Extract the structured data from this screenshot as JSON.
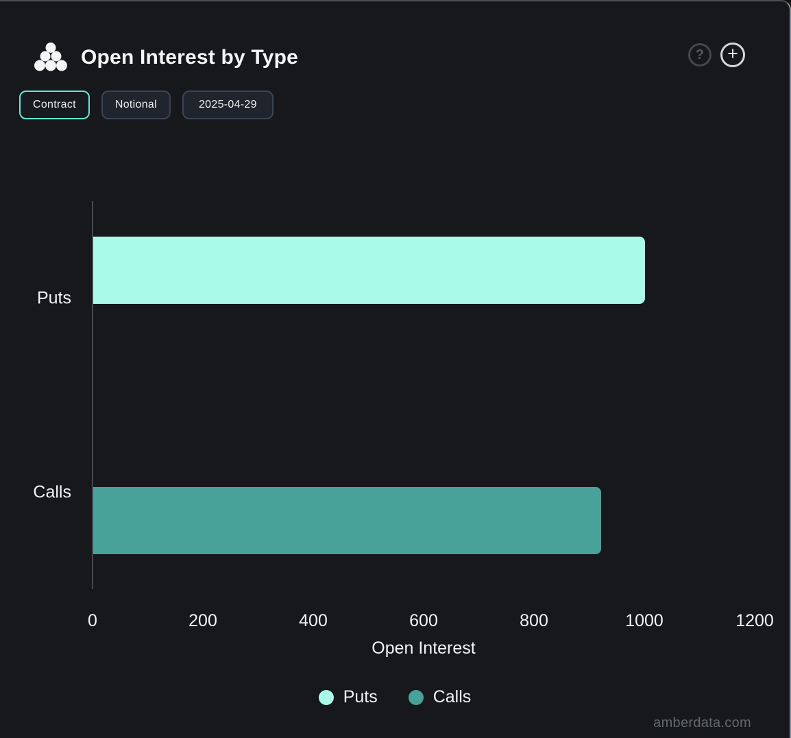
{
  "header": {
    "title": "Open Interest by Type",
    "help_label": "?",
    "add_label": "+"
  },
  "toolbar": {
    "buttons": [
      {
        "label": "Contract",
        "active": true
      },
      {
        "label": "Notional",
        "active": false
      },
      {
        "label": "2025-04-29",
        "active": false
      }
    ]
  },
  "chart_data": {
    "type": "bar",
    "orientation": "horizontal",
    "title": "Open Interest by Type",
    "categories": [
      "Puts",
      "Calls"
    ],
    "series": [
      {
        "name": "Puts",
        "color": "#aafaea",
        "values": [
          1000,
          0
        ]
      },
      {
        "name": "Calls",
        "color": "#48a29a",
        "values": [
          0,
          920
        ]
      }
    ],
    "xlabel": "Open Interest",
    "xlim": [
      0,
      1200
    ],
    "xticks": [
      0,
      200,
      400,
      600,
      800,
      1000,
      1200
    ],
    "legend_position": "bottom",
    "grid": false,
    "colors": {
      "background": "#16181b",
      "axis_line": "#46484c",
      "text": "#f2f3f4"
    }
  },
  "watermark": "amberdata.com"
}
